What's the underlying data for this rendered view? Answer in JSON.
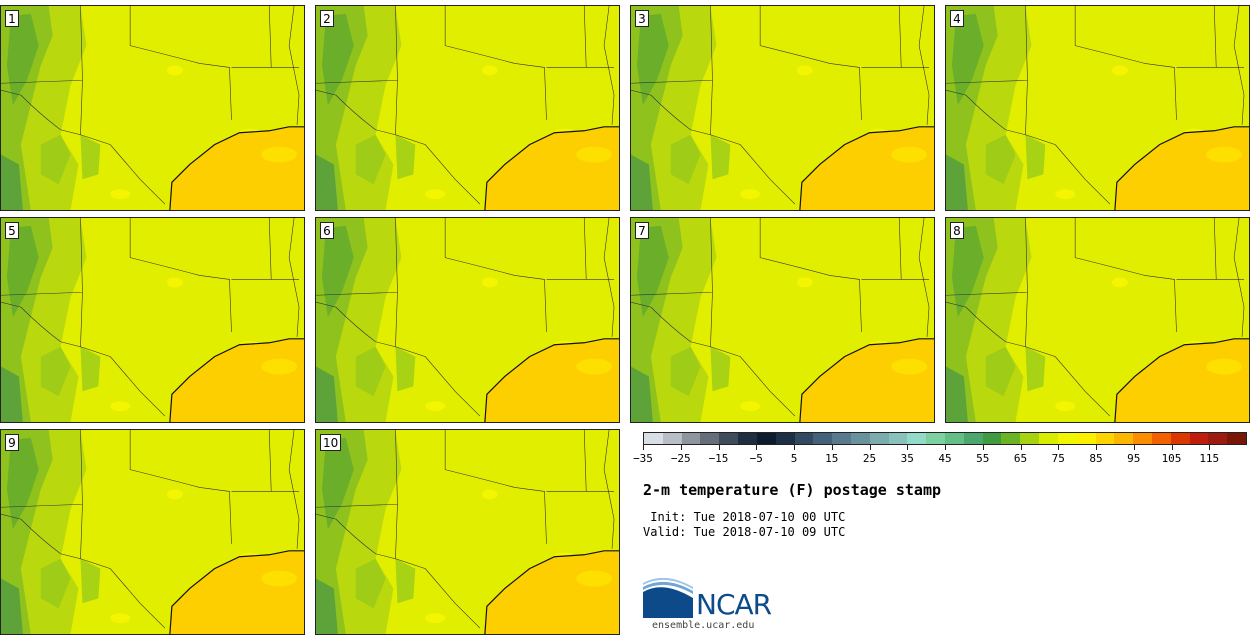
{
  "panels": [
    {
      "label": "1"
    },
    {
      "label": "2"
    },
    {
      "label": "3"
    },
    {
      "label": "4"
    },
    {
      "label": "5"
    },
    {
      "label": "6"
    },
    {
      "label": "7"
    },
    {
      "label": "8"
    },
    {
      "label": "9"
    },
    {
      "label": "10"
    }
  ],
  "colorbar": {
    "colors": [
      "#d9dde4",
      "#b9bec6",
      "#8f959e",
      "#666e7a",
      "#3f4a5a",
      "#1f2d40",
      "#0d1b2e",
      "#1c2f45",
      "#324a60",
      "#44607a",
      "#587a8c",
      "#6a929c",
      "#7aabad",
      "#88c2bb",
      "#94dac8",
      "#7dd0a0",
      "#63bf86",
      "#4ca86a",
      "#3f9a40",
      "#6ab325",
      "#a7d211",
      "#d8ec00",
      "#f1f500",
      "#fbef00",
      "#fdd400",
      "#fbb600",
      "#fb8e00",
      "#f26100",
      "#dc3700",
      "#bd1d0a",
      "#9d1a0e",
      "#7a1608"
    ],
    "tick_labels": [
      "−35",
      "−25",
      "−15",
      "−5",
      "5",
      "15",
      "25",
      "35",
      "45",
      "55",
      "65",
      "75",
      "85",
      "95",
      "105",
      "115"
    ]
  },
  "title": "2-m temperature (F) postage stamp",
  "init_line": " Init: Tue 2018-07-10 00 UTC",
  "valid_line": "Valid: Tue 2018-07-10 09 UTC",
  "logo": {
    "text": "NCAR",
    "colors": {
      "primary": "#0d4a8a",
      "light": "#6fa6d6"
    }
  },
  "site": "ensemble.ucar.edu"
}
